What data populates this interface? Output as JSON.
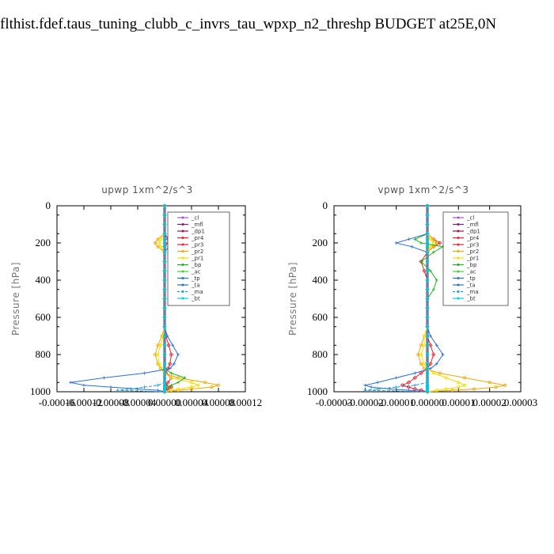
{
  "title": "flthist.fdef.taus_tuning_clubb_c_invrs_tau_wpxp_n2_threshp  BUDGET at25E,0N",
  "legend_labels": [
    "_cl",
    "_mfl",
    "_dp1",
    "_pr4",
    "_pr3",
    "_pr2",
    "_pr1",
    "_bp",
    "_ac",
    "_tp",
    "_ta",
    "_ma",
    "_bt"
  ],
  "series_colors": [
    "#9b59d0",
    "#7a1f6e",
    "#a0144a",
    "#e8222e",
    "#e8222e",
    "#f2a800",
    "#f0e000",
    "#21b321",
    "#3cd23c",
    "#2a6fd8",
    "#2a6fd8",
    "#1a9ad0",
    "#00cfe8"
  ],
  "chart_data": [
    {
      "type": "line",
      "title": "upwp   1xm^2/s^3",
      "xlabel": "",
      "ylabel": "Pressure [hPa]",
      "ylim": [
        1000,
        0
      ],
      "xlim": [
        -0.00016,
        0.00012
      ],
      "x_tick_labels": [
        "-0.00016",
        "-0.00012",
        "-0.00008",
        "-0.00004",
        "0.00000",
        "0.00004",
        "0.00008",
        "0.00012"
      ],
      "x_tick_values": [
        -0.00016,
        -0.00012,
        -8e-05,
        -4e-05,
        0,
        4e-05,
        8e-05,
        0.00012
      ],
      "y_tick_labels": [
        "0",
        "200",
        "400",
        "600",
        "800",
        "1000"
      ],
      "y_tick_values": [
        0,
        200,
        400,
        600,
        800,
        1000
      ],
      "pressure": [
        0,
        50,
        100,
        150,
        180,
        200,
        220,
        250,
        300,
        350,
        400,
        450,
        500,
        550,
        600,
        650,
        700,
        750,
        800,
        850,
        875,
        900,
        925,
        950,
        965,
        975,
        985,
        992,
        1000
      ],
      "series": [
        {
          "name": "_cl",
          "values": [
            0,
            0,
            0,
            0,
            0,
            0,
            0,
            0,
            0,
            0,
            0,
            0,
            0,
            0,
            0,
            0,
            0,
            0,
            0,
            0,
            0,
            0,
            0,
            0,
            0,
            0,
            0,
            0,
            0
          ]
        },
        {
          "name": "_mfl",
          "values": [
            0,
            0,
            0,
            0,
            0,
            0,
            0,
            0,
            0,
            0,
            0,
            0,
            0,
            0,
            0,
            0,
            0,
            0,
            0,
            0,
            0,
            0,
            0,
            0,
            0,
            0,
            0,
            0,
            0
          ]
        },
        {
          "name": "_dp1",
          "values": [
            0,
            0,
            0,
            0,
            0,
            0,
            0,
            0,
            0,
            0,
            0,
            0,
            0,
            0,
            0,
            0,
            0,
            0,
            0,
            0,
            0,
            0,
            0,
            0,
            0,
            0,
            0,
            0,
            0
          ]
        },
        {
          "name": "_pr4",
          "values": [
            0,
            0,
            0,
            0,
            0,
            0,
            0,
            0,
            0,
            0,
            0,
            0,
            0,
            0,
            0,
            0,
            0,
            0,
            0,
            0,
            0,
            0,
            0,
            0,
            0,
            0,
            0,
            0,
            0
          ]
        },
        {
          "name": "_pr3",
          "values": [
            0,
            0,
            0,
            0,
            5e-06,
            5e-06,
            0,
            0,
            0,
            0,
            0,
            0,
            0,
            0,
            0,
            0,
            2e-06,
            6e-06,
            1e-05,
            8e-06,
            5e-06,
            2e-06,
            1e-05,
            5e-06,
            2e-06,
            1e-05,
            5e-06,
            2e-06,
            0
          ]
        },
        {
          "name": "_pr2",
          "values": [
            0,
            0,
            0,
            0,
            -1e-05,
            -1.4e-05,
            -1e-05,
            0,
            0,
            0,
            0,
            0,
            0,
            0,
            0,
            0,
            -4e-06,
            -1e-05,
            -1.4e-05,
            -1e-05,
            -6e-06,
            0,
            2e-05,
            6e-05,
            8e-05,
            7e-05,
            4e-05,
            2e-05,
            0
          ]
        },
        {
          "name": "_pr1",
          "values": [
            0,
            0,
            0,
            0,
            -6e-06,
            -8e-06,
            -6e-06,
            0,
            0,
            0,
            0,
            0,
            0,
            0,
            0,
            0,
            -2e-06,
            -6e-06,
            -1e-05,
            -8e-06,
            -4e-06,
            0,
            1e-05,
            4e-05,
            5e-05,
            4e-05,
            2e-05,
            1e-05,
            0
          ]
        },
        {
          "name": "_bp",
          "values": [
            0,
            0,
            0,
            0,
            0,
            0,
            0,
            0,
            0,
            0,
            0,
            0,
            0,
            0,
            0,
            0,
            0,
            0,
            0,
            0,
            0,
            1e-05,
            3e-05,
            2e-05,
            1e-05,
            5e-06,
            0,
            0,
            0
          ]
        },
        {
          "name": "_ac",
          "values": [
            0,
            0,
            0,
            0,
            0,
            0,
            0,
            0,
            0,
            0,
            0,
            0,
            0,
            0,
            0,
            0,
            0,
            0,
            0,
            0,
            0,
            0,
            0,
            0,
            0,
            0,
            0,
            0,
            0
          ]
        },
        {
          "name": "_tp",
          "values": [
            0,
            0,
            0,
            0,
            6e-06,
            1e-05,
            6e-06,
            0,
            0,
            0,
            0,
            0,
            0,
            0,
            0,
            0,
            4e-06,
            1.2e-05,
            2e-05,
            1.4e-05,
            8e-06,
            -3e-05,
            -9e-05,
            -0.00014,
            -0.00012,
            -8e-05,
            -4e-05,
            -1e-05,
            0
          ]
        },
        {
          "name": "_ta",
          "values": [
            0,
            0,
            0,
            0,
            0,
            0,
            0,
            0,
            0,
            0,
            0,
            0,
            0,
            0,
            0,
            0,
            0,
            0,
            0,
            0,
            0,
            0,
            0,
            0,
            0,
            0,
            0,
            0,
            0
          ]
        },
        {
          "name": "_ma",
          "values": [
            0,
            0,
            0,
            0,
            0,
            0,
            0,
            0,
            0,
            0,
            0,
            0,
            0,
            0,
            0,
            0,
            0,
            0,
            0,
            0,
            0,
            0,
            0,
            0,
            -1e-05,
            -3e-05,
            -5e-05,
            -7e-05,
            0
          ]
        },
        {
          "name": "_bt",
          "values": [
            0,
            0,
            0,
            0,
            0,
            0,
            0,
            0,
            0,
            0,
            0,
            0,
            0,
            0,
            0,
            0,
            0,
            0,
            0,
            0,
            0,
            0,
            0,
            0,
            0,
            0,
            0,
            0,
            0
          ]
        }
      ]
    },
    {
      "type": "line",
      "title": "vpwp   1xm^2/s^3",
      "xlabel": "",
      "ylabel": "Pressure [hPa]",
      "ylim": [
        1000,
        0
      ],
      "xlim": [
        -3e-05,
        3e-05
      ],
      "x_tick_labels": [
        "-0.00003",
        "-0.00002",
        "-0.00001",
        "0.00000",
        "0.00001",
        "0.00002",
        "0.00003"
      ],
      "x_tick_values": [
        -3e-05,
        -2e-05,
        -1e-05,
        0,
        1e-05,
        2e-05,
        3e-05
      ],
      "y_tick_labels": [
        "0",
        "200",
        "400",
        "600",
        "800",
        "1000"
      ],
      "y_tick_values": [
        0,
        200,
        400,
        600,
        800,
        1000
      ],
      "pressure": [
        0,
        50,
        100,
        150,
        180,
        200,
        220,
        250,
        300,
        350,
        400,
        450,
        500,
        550,
        600,
        650,
        700,
        750,
        800,
        850,
        875,
        900,
        925,
        950,
        965,
        975,
        985,
        992,
        1000
      ],
      "series": [
        {
          "name": "_cl",
          "values": [
            0,
            0,
            0,
            0,
            0,
            0,
            0,
            0,
            0,
            0,
            0,
            0,
            0,
            0,
            0,
            0,
            0,
            0,
            0,
            0,
            0,
            0,
            0,
            0,
            0,
            0,
            0,
            0,
            0
          ]
        },
        {
          "name": "_mfl",
          "values": [
            0,
            0,
            0,
            0,
            0,
            0,
            0,
            0,
            0,
            0,
            0,
            0,
            0,
            0,
            0,
            0,
            0,
            0,
            0,
            0,
            0,
            0,
            0,
            0,
            0,
            0,
            0,
            0,
            0
          ]
        },
        {
          "name": "_dp1",
          "values": [
            0,
            0,
            0,
            0,
            0,
            0,
            0,
            0,
            0,
            0,
            0,
            0,
            0,
            0,
            0,
            0,
            0,
            0,
            0,
            0,
            0,
            0,
            0,
            0,
            0,
            0,
            0,
            0,
            0
          ]
        },
        {
          "name": "_pr4",
          "values": [
            0,
            0,
            0,
            0,
            0,
            0,
            0,
            0,
            0,
            0,
            0,
            0,
            0,
            0,
            0,
            0,
            0,
            0,
            0,
            0,
            0,
            0,
            0,
            0,
            0,
            0,
            0,
            0,
            0
          ]
        },
        {
          "name": "_pr3",
          "values": [
            0,
            0,
            0,
            0,
            2e-06,
            4e-06,
            2e-06,
            0,
            -2e-06,
            -1e-06,
            0,
            0,
            0,
            0,
            0,
            0,
            0,
            1e-06,
            2e-06,
            1e-06,
            0,
            -2e-06,
            -4e-06,
            -6e-06,
            -8e-06,
            -6e-06,
            -4e-06,
            -2e-06,
            0
          ]
        },
        {
          "name": "_pr2",
          "values": [
            0,
            0,
            0,
            0,
            2e-06,
            3e-06,
            2e-06,
            0,
            0,
            0,
            0,
            0,
            0,
            0,
            0,
            0,
            -1e-06,
            -2e-06,
            -3e-06,
            -2e-06,
            -1e-06,
            4e-06,
            1.2e-05,
            2e-05,
            2.5e-05,
            2.2e-05,
            1.5e-05,
            8e-06,
            0
          ]
        },
        {
          "name": "_pr1",
          "values": [
            0,
            0,
            0,
            0,
            1e-06,
            2e-06,
            1e-06,
            0,
            0,
            0,
            0,
            0,
            0,
            0,
            0,
            0,
            -1e-06,
            -1e-06,
            -2e-06,
            -1e-06,
            0,
            2e-06,
            6e-06,
            1e-05,
            1.2e-05,
            1e-05,
            6e-06,
            3e-06,
            0
          ]
        },
        {
          "name": "_bp",
          "values": [
            0,
            0,
            0,
            0,
            -4e-06,
            -2e-06,
            5e-06,
            2e-06,
            -2e-06,
            1e-06,
            3e-06,
            2e-06,
            0,
            0,
            0,
            0,
            0,
            0,
            0,
            0,
            0,
            0,
            0,
            0,
            0,
            0,
            0,
            0,
            0
          ]
        },
        {
          "name": "_ac",
          "values": [
            0,
            0,
            0,
            0,
            0,
            0,
            0,
            0,
            0,
            0,
            0,
            0,
            0,
            0,
            0,
            0,
            0,
            0,
            0,
            0,
            0,
            0,
            0,
            0,
            0,
            0,
            0,
            0,
            0
          ]
        },
        {
          "name": "_tp",
          "values": [
            0,
            0,
            0,
            0,
            -6e-06,
            -1e-05,
            -5e-06,
            0,
            0,
            0,
            0,
            0,
            0,
            0,
            0,
            0,
            1e-06,
            3e-06,
            5e-06,
            3e-06,
            1e-06,
            -4e-06,
            -1e-05,
            -1.6e-05,
            -2e-05,
            -1.8e-05,
            -1.2e-05,
            -6e-06,
            0
          ]
        },
        {
          "name": "_ta",
          "values": [
            0,
            0,
            0,
            0,
            0,
            0,
            0,
            0,
            0,
            0,
            0,
            0,
            0,
            0,
            0,
            0,
            0,
            0,
            0,
            0,
            0,
            0,
            0,
            0,
            0,
            0,
            0,
            0,
            0
          ]
        },
        {
          "name": "_ma",
          "values": [
            0,
            0,
            0,
            0,
            0,
            0,
            0,
            0,
            0,
            0,
            0,
            0,
            0,
            0,
            0,
            0,
            0,
            0,
            0,
            0,
            0,
            0,
            0,
            0,
            -4e-06,
            -1e-05,
            -1.6e-05,
            -2e-05,
            0
          ]
        },
        {
          "name": "_bt",
          "values": [
            0,
            0,
            0,
            0,
            0,
            0,
            0,
            0,
            0,
            0,
            0,
            0,
            0,
            0,
            0,
            0,
            0,
            0,
            0,
            0,
            0,
            0,
            0,
            0,
            0,
            0,
            0,
            0,
            0
          ]
        }
      ]
    }
  ]
}
